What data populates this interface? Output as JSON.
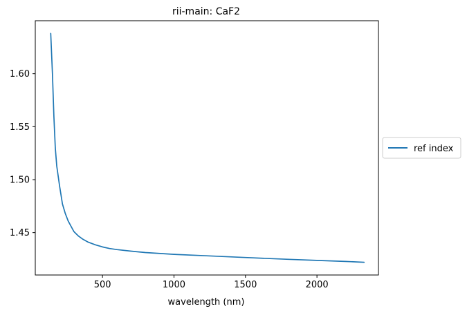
{
  "chart_data": {
    "type": "line",
    "title": "rii-main: CaF2",
    "xlabel": "wavelength (nm)",
    "ylabel": "",
    "xlim": [
      30,
      2430
    ],
    "ylim": [
      1.41,
      1.65
    ],
    "x_ticks": [
      500,
      1000,
      1500,
      2000
    ],
    "x_tick_labels": [
      "500",
      "1000",
      "1500",
      "2000"
    ],
    "y_ticks": [
      1.45,
      1.5,
      1.55,
      1.6
    ],
    "y_tick_labels": [
      "1.45",
      "1.50",
      "1.55",
      "1.60"
    ],
    "grid": false,
    "legend": {
      "placement": "outside-right",
      "entries": [
        "ref index"
      ]
    },
    "series": [
      {
        "name": "ref index",
        "color": "#1f77b4",
        "x": [
          138,
          150,
          160,
          170,
          180,
          200,
          220,
          240,
          260,
          280,
          300,
          330,
          360,
          400,
          450,
          500,
          550,
          600,
          700,
          800,
          1000,
          1200,
          1500,
          1800,
          2000,
          2200,
          2330
        ],
        "y": [
          1.638,
          1.6,
          1.56,
          1.53,
          1.513,
          1.494,
          1.477,
          1.468,
          1.461,
          1.456,
          1.451,
          1.447,
          1.444,
          1.441,
          1.4385,
          1.4365,
          1.435,
          1.434,
          1.4325,
          1.4312,
          1.4295,
          1.4283,
          1.4265,
          1.4248,
          1.4238,
          1.4228,
          1.422
        ]
      }
    ]
  }
}
